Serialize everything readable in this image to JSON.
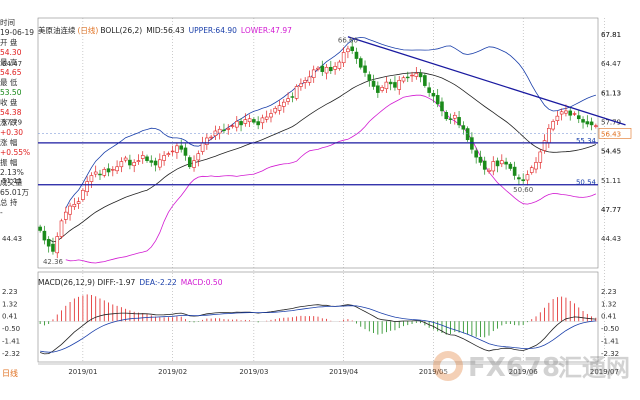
{
  "info_panel": [
    {
      "label": "时间",
      "cls": "lbl"
    },
    {
      "label": "19-06-19",
      "cls": "lbl"
    },
    {
      "label": "开 盘",
      "cls": "lbl"
    },
    {
      "label": "54.30",
      "cls": "up"
    },
    {
      "label": "最 高",
      "cls": "lbl"
    },
    {
      "label": "54.65",
      "cls": "up"
    },
    {
      "label": "最 低",
      "cls": "lbl"
    },
    {
      "label": "53.50",
      "cls": "dn"
    },
    {
      "label": "收 盘",
      "cls": "lbl"
    },
    {
      "label": "54.38",
      "cls": "up"
    },
    {
      "label": "涨 跌",
      "cls": "lbl"
    },
    {
      "label": "+0.30",
      "cls": "up"
    },
    {
      "label": "涨 幅",
      "cls": "lbl"
    },
    {
      "label": "+0.55%",
      "cls": "up"
    },
    {
      "label": "振 幅",
      "cls": "lbl"
    },
    {
      "label": "2.13%",
      "cls": "lbl"
    },
    {
      "label": "成交量",
      "cls": "lbl"
    },
    {
      "label": "65.01万",
      "cls": "lbl"
    },
    {
      "label": "总 持",
      "cls": "lbl"
    },
    {
      "label": "-",
      "cls": "lbl"
    }
  ],
  "main_title": {
    "symbol": "美原油连续",
    "period": "(日线)",
    "indicator": "BOLL(26,2)",
    "mid": "MID:56.43",
    "upper": "UPPER:64.90",
    "lower": "LOWER:47.97"
  },
  "macd_title": {
    "diff": "MACD(26,12,9) DIFF:-1.97",
    "dea": "DEA:-2.22",
    "macd": "MACD:0.50"
  },
  "period_tab": "日线",
  "colors": {
    "up": "#e02020",
    "down": "#1a8a1a",
    "upper_band": "#1a3faa",
    "mid": "#222222",
    "lower_band": "#d21ad2",
    "trendline": "#1a1aa0",
    "hline": "#1a1aa0",
    "accent": "#e07020"
  },
  "chart_data": {
    "type": "candlestick",
    "price_ylim": [
      41.0,
      68.5
    ],
    "y_ticks": [
      67.81,
      64.47,
      61.13,
      57.79,
      54.45,
      51.11,
      47.77,
      44.43
    ],
    "right_labels": [
      {
        "value": 56.43,
        "text": "56.43",
        "color": "#e07020",
        "ax": "right"
      },
      {
        "value": 55.34,
        "text": "55.34",
        "color": "#1a3faa",
        "ax": "inner"
      },
      {
        "value": 50.54,
        "text": "50.54",
        "color": "#1a3faa",
        "ax": "inner"
      }
    ],
    "peak_labels": [
      {
        "idx": 72,
        "value": 66.6,
        "text": "66.60",
        "pos": "above"
      },
      {
        "idx": 3,
        "value": 42.36,
        "text": "42.36",
        "pos": "below"
      },
      {
        "idx": 113,
        "value": 50.6,
        "text": "50.60",
        "pos": "below"
      }
    ],
    "x_labels": [
      {
        "idx": 10,
        "text": "2019/01"
      },
      {
        "idx": 31,
        "text": "2019/02"
      },
      {
        "idx": 50,
        "text": "2019/03"
      },
      {
        "idx": 71,
        "text": "2019/04"
      },
      {
        "idx": 92,
        "text": "2019/05"
      },
      {
        "idx": 113,
        "text": "2019/06"
      },
      {
        "idx": 132,
        "text": "2019/07"
      }
    ],
    "hlines": [
      55.34,
      50.54
    ],
    "dashed_hline": 56.43,
    "trendline": [
      [
        72,
        67.5
      ],
      [
        136,
        57.4
      ]
    ],
    "closes": [
      45.3,
      44.2,
      43.5,
      42.9,
      44.6,
      46.4,
      47.4,
      48.1,
      48.3,
      48.6,
      49.9,
      50.9,
      51.6,
      52.0,
      51.7,
      52.3,
      52.0,
      52.3,
      52.6,
      53.2,
      53.6,
      52.8,
      53.1,
      53.3,
      53.9,
      53.3,
      53.1,
      52.8,
      53.4,
      53.9,
      54.1,
      54.4,
      55.0,
      54.6,
      53.9,
      52.6,
      53.3,
      54.1,
      55.3,
      55.9,
      56.0,
      56.7,
      56.9,
      56.8,
      57.0,
      57.3,
      57.8,
      57.4,
      58.0,
      58.1,
      57.7,
      57.4,
      58.2,
      58.3,
      58.7,
      59.3,
      59.6,
      60.0,
      60.4,
      60.6,
      61.8,
      62.1,
      62.5,
      62.9,
      63.7,
      63.9,
      63.5,
      64.0,
      63.6,
      64.1,
      64.6,
      65.7,
      66.1,
      65.9,
      65.0,
      64.0,
      63.4,
      62.5,
      61.8,
      61.1,
      61.7,
      62.3,
      62.1,
      61.7,
      62.5,
      62.8,
      62.8,
      63.1,
      63.3,
      62.9,
      61.9,
      61.1,
      60.7,
      59.8,
      59.0,
      58.1,
      58.0,
      58.5,
      57.4,
      56.9,
      55.7,
      54.6,
      53.7,
      53.1,
      52.3,
      52.2,
      53.2,
      52.7,
      53.3,
      52.9,
      52.4,
      51.6,
      51.2,
      51.0,
      51.7,
      52.5,
      53.1,
      54.3,
      55.6,
      57.0,
      57.8,
      58.4,
      58.9,
      59.0,
      58.5,
      58.7,
      58.1,
      57.7,
      57.5,
      57.4,
      57.3
    ],
    "macd_ylim": [
      -3.0,
      2.6
    ],
    "macd_ticks": [
      2.23,
      1.32,
      0.41,
      -0.5,
      -1.41,
      -2.32
    ],
    "diff": [
      -2.3,
      -2.4,
      -2.38,
      -2.2,
      -1.95,
      -1.7,
      -1.4,
      -1.1,
      -0.8,
      -0.55,
      -0.3,
      -0.05,
      0.15,
      0.3,
      0.4,
      0.48,
      0.52,
      0.55,
      0.58,
      0.6,
      0.6,
      0.58,
      0.56,
      0.55,
      0.56,
      0.55,
      0.52,
      0.48,
      0.47,
      0.48,
      0.5,
      0.52,
      0.58,
      0.6,
      0.52,
      0.4,
      0.38,
      0.4,
      0.48,
      0.55,
      0.58,
      0.62,
      0.64,
      0.64,
      0.64,
      0.65,
      0.68,
      0.66,
      0.68,
      0.68,
      0.64,
      0.6,
      0.64,
      0.66,
      0.7,
      0.75,
      0.8,
      0.85,
      0.9,
      0.94,
      1.02,
      1.08,
      1.12,
      1.16,
      1.2,
      1.22,
      1.18,
      1.18,
      1.12,
      1.1,
      1.12,
      1.18,
      1.22,
      1.18,
      1.05,
      0.88,
      0.72,
      0.55,
      0.38,
      0.2,
      0.12,
      0.08,
      0.04,
      -0.02,
      0.0,
      0.02,
      0.02,
      0.03,
      0.05,
      0.02,
      -0.1,
      -0.25,
      -0.38,
      -0.55,
      -0.72,
      -0.9,
      -1.0,
      -1.02,
      -1.15,
      -1.28,
      -1.45,
      -1.62,
      -1.8,
      -1.95,
      -2.1,
      -2.18,
      -2.1,
      -2.08,
      -2.0,
      -1.98,
      -2.0,
      -2.08,
      -2.12,
      -2.15,
      -2.05,
      -1.92,
      -1.78,
      -1.55,
      -1.25,
      -0.9,
      -0.55,
      -0.25,
      0.0,
      0.18,
      0.25,
      0.32,
      0.3,
      0.26,
      0.22,
      0.18,
      0.16
    ],
    "dea": [
      -2.2,
      -2.25,
      -2.28,
      -2.27,
      -2.2,
      -2.1,
      -1.97,
      -1.81,
      -1.64,
      -1.45,
      -1.25,
      -1.04,
      -0.82,
      -0.62,
      -0.44,
      -0.29,
      -0.17,
      -0.07,
      0.01,
      0.08,
      0.14,
      0.18,
      0.21,
      0.23,
      0.26,
      0.28,
      0.3,
      0.31,
      0.32,
      0.34,
      0.35,
      0.37,
      0.4,
      0.43,
      0.44,
      0.43,
      0.42,
      0.42,
      0.43,
      0.45,
      0.48,
      0.51,
      0.53,
      0.56,
      0.57,
      0.59,
      0.61,
      0.62,
      0.63,
      0.64,
      0.64,
      0.64,
      0.64,
      0.64,
      0.65,
      0.67,
      0.69,
      0.72,
      0.76,
      0.79,
      0.84,
      0.88,
      0.93,
      0.97,
      1.01,
      1.05,
      1.07,
      1.09,
      1.1,
      1.1,
      1.11,
      1.12,
      1.14,
      1.15,
      1.13,
      1.08,
      1.01,
      0.92,
      0.81,
      0.69,
      0.58,
      0.48,
      0.39,
      0.31,
      0.25,
      0.2,
      0.16,
      0.13,
      0.11,
      0.09,
      0.05,
      -0.01,
      -0.08,
      -0.18,
      -0.29,
      -0.41,
      -0.53,
      -0.63,
      -0.73,
      -0.84,
      -0.96,
      -1.09,
      -1.23,
      -1.37,
      -1.51,
      -1.65,
      -1.74,
      -1.81,
      -1.85,
      -1.88,
      -1.9,
      -1.94,
      -1.97,
      -2.01,
      -2.02,
      -2.0,
      -1.96,
      -1.88,
      -1.75,
      -1.58,
      -1.37,
      -1.14,
      -0.91,
      -0.69,
      -0.5,
      -0.34,
      -0.21,
      -0.12,
      -0.05,
      0.0,
      0.03
    ]
  }
}
